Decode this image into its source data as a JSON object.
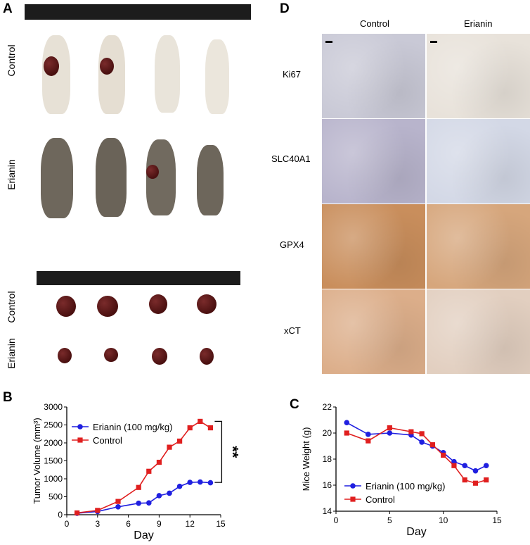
{
  "panels": {
    "a": "A",
    "b": "B",
    "c": "C",
    "d": "D"
  },
  "panel_a": {
    "row_labels": [
      "Control",
      "Erianin"
    ],
    "tumor_row_labels": [
      "Control",
      "Erianin"
    ]
  },
  "panel_d": {
    "col_labels": [
      "Control",
      "Erianin"
    ],
    "row_labels": [
      "Ki67",
      "SLC40A1",
      "GPX4",
      "xCT"
    ],
    "colors": {
      "Ki67_control": "#c9c9d6",
      "Ki67_erianin": "#e8e2da",
      "SLC40A1_control": "#b8b4cc",
      "SLC40A1_erianin": "#d3d8e6",
      "GPX4_control": "#c98e5c",
      "GPX4_erianin": "#d6a67c",
      "xCT_control": "#dcae8a",
      "xCT_erianin": "#e2cfc0"
    }
  },
  "chart_data": [
    {
      "type": "line",
      "id": "B",
      "xlabel": "Day",
      "ylabel": "Tumor Volume (mm³)",
      "xlim": [
        0,
        15
      ],
      "ylim": [
        0,
        3000
      ],
      "xticks": [
        0,
        3,
        6,
        9,
        12,
        15
      ],
      "yticks": [
        0,
        500,
        1000,
        1500,
        2000,
        2500,
        3000
      ],
      "annotation": "**",
      "legend": "top-left",
      "series": [
        {
          "name": "Erianin (100 mg/kg)",
          "color": "#1f1fe0",
          "marker": "circle",
          "x": [
            1,
            3,
            5,
            7,
            8,
            9,
            10,
            11,
            12,
            13,
            14
          ],
          "y": [
            40,
            90,
            220,
            320,
            330,
            530,
            600,
            790,
            900,
            910,
            890
          ]
        },
        {
          "name": "Control",
          "color": "#e01f1f",
          "marker": "square",
          "x": [
            1,
            3,
            5,
            7,
            8,
            9,
            10,
            11,
            12,
            13,
            14
          ],
          "y": [
            50,
            120,
            370,
            760,
            1210,
            1460,
            1880,
            2050,
            2420,
            2600,
            2420
          ]
        }
      ]
    },
    {
      "type": "line",
      "id": "C",
      "xlabel": "Day",
      "ylabel": "Mice Weight (g)",
      "xlim": [
        0,
        15
      ],
      "ylim": [
        14,
        22
      ],
      "xticks": [
        0,
        5,
        10,
        15
      ],
      "yticks": [
        14,
        16,
        18,
        20,
        22
      ],
      "legend": "bottom-left",
      "series": [
        {
          "name": "Erianin (100 mg/kg)",
          "color": "#1f1fe0",
          "marker": "circle",
          "x": [
            1,
            3,
            5,
            7,
            8,
            9,
            10,
            11,
            12,
            13,
            14
          ],
          "y": [
            20.8,
            19.9,
            20.0,
            19.85,
            19.3,
            19.0,
            18.5,
            17.8,
            17.5,
            17.1,
            17.5
          ]
        },
        {
          "name": "Control",
          "color": "#e01f1f",
          "marker": "square",
          "x": [
            1,
            3,
            5,
            7,
            8,
            9,
            10,
            11,
            12,
            13,
            14
          ],
          "y": [
            20.0,
            19.4,
            20.4,
            20.1,
            19.95,
            19.1,
            18.3,
            17.5,
            16.4,
            16.15,
            16.4
          ]
        }
      ]
    }
  ]
}
